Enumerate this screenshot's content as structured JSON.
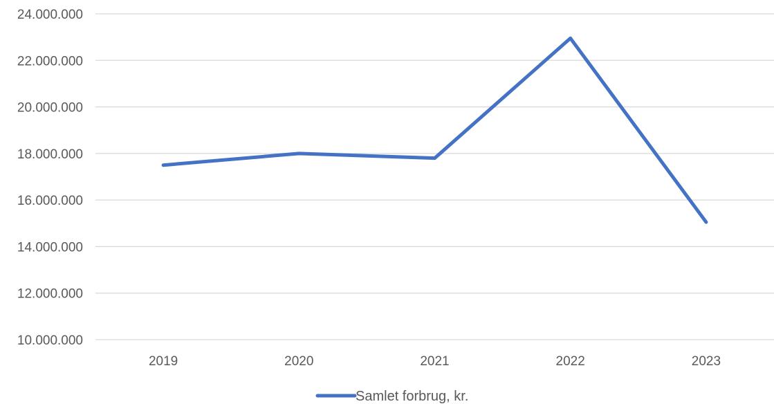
{
  "chart_data": {
    "type": "line",
    "categories": [
      "2019",
      "2020",
      "2021",
      "2022",
      "2023"
    ],
    "series": [
      {
        "name": "Samlet forbrug, kr.",
        "values": [
          17500000,
          18000000,
          17800000,
          22950000,
          15050000
        ],
        "color": "#4472C4"
      }
    ],
    "ylim": [
      10000000,
      24000000
    ],
    "yticks": [
      10000000,
      12000000,
      14000000,
      16000000,
      18000000,
      20000000,
      22000000,
      24000000
    ],
    "ytick_labels": [
      "10.000.000",
      "12.000.000",
      "14.000.000",
      "16.000.000",
      "18.000.000",
      "20.000.000",
      "22.000.000",
      "24.000.000"
    ],
    "grid": true,
    "legend_position": "bottom",
    "gridline_color": "#d9d9d9",
    "text_color": "#595959"
  }
}
